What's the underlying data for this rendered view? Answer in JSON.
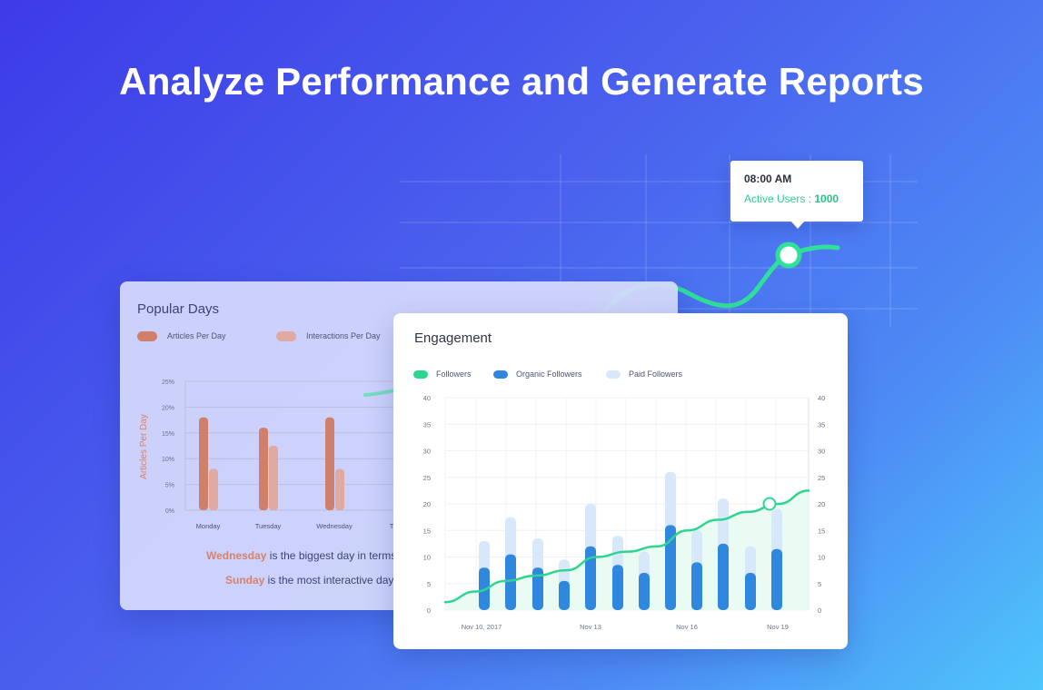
{
  "headline": "Analyze Performance and Generate Reports",
  "tooltip": {
    "time": "08:00 AM",
    "label": "Active Users : ",
    "value": "1000"
  },
  "popular_days": {
    "title": "Popular Days",
    "insight1": {
      "day": "Wednesday",
      "text": " is the biggest day in terms o"
    },
    "insight2": {
      "day": "Sunday",
      "text": " is the most interactive day w"
    }
  },
  "engagement": {
    "title": "Engagement"
  },
  "colors": {
    "articles": "#cf7f6a",
    "interactions": "#e0a9a2",
    "followers": "#2dd68f",
    "organic": "#2f87de",
    "paid": "#d8e8fb"
  },
  "chart_data": [
    {
      "type": "bar",
      "categories": [
        "Monday",
        "Tuesday",
        "Wednesday",
        "T"
      ],
      "ylabel": "Articles Per Day",
      "ylim": [
        0,
        25
      ],
      "yticks": [
        "0%",
        "5%",
        "10%",
        "15%",
        "20%",
        "25%"
      ],
      "legend": "top-left",
      "series": [
        {
          "name": "Articles Per Day",
          "values": [
            18,
            16,
            18,
            null
          ]
        },
        {
          "name": "Interactions Per Day",
          "values": [
            8,
            12.5,
            8,
            null
          ]
        }
      ]
    },
    {
      "type": "bar",
      "xlabels": [
        "Nov 10, 2017",
        "Nov 13",
        "Nov 16",
        "Nov 19"
      ],
      "ylim": [
        0,
        40
      ],
      "yticks": [
        "0",
        "5",
        "10",
        "15",
        "20",
        "25",
        "30",
        "35",
        "40"
      ],
      "legend": "top-left",
      "series": [
        {
          "name": "Followers",
          "type": "line",
          "values": [
            1.5,
            3.5,
            5.5,
            6.5,
            7.5,
            10,
            11,
            12,
            15,
            17,
            18.5,
            20,
            22.5
          ]
        },
        {
          "name": "Organic Followers",
          "values": [
            8,
            10.5,
            8,
            5.5,
            12,
            8.5,
            7,
            16,
            9,
            12.5,
            7,
            11.5
          ]
        },
        {
          "name": "Paid Followers",
          "values": [
            13,
            17.5,
            13.5,
            9.5,
            20,
            14,
            11,
            26,
            15,
            21,
            12,
            19
          ]
        }
      ]
    }
  ]
}
